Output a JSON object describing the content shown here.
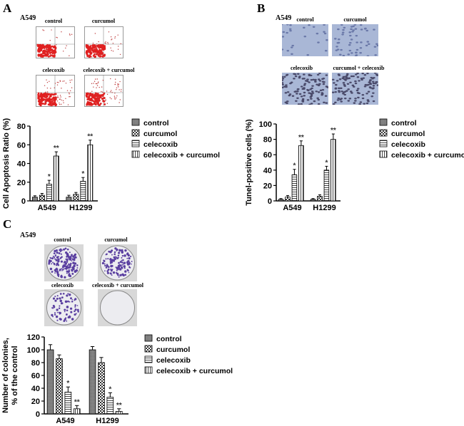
{
  "panels": [
    {
      "label": "A",
      "cell_line": "A549",
      "image_captions": [
        "control",
        "curcumol",
        "celecoxib",
        "celecoxib + curcumol"
      ]
    },
    {
      "label": "B",
      "cell_line": "A549",
      "image_captions": [
        "control",
        "curcumol",
        "celecoxib",
        "curcumol + celecoxib"
      ]
    },
    {
      "label": "C",
      "cell_line": "A549",
      "image_captions": [
        "control",
        "curcumol",
        "celecoxib",
        "celecoxib + curcumol"
      ]
    }
  ],
  "chart_data": [
    {
      "type": "bar",
      "ylabel": "Cell Apoptosis Ratio (%)",
      "ylabel2": "",
      "categories": [
        "A549",
        "H1299"
      ],
      "ylim": [
        0,
        80
      ],
      "yticks": [
        0,
        20,
        40,
        60,
        80
      ],
      "legend": "right",
      "series": [
        {
          "name": "control",
          "values": [
            4,
            4
          ],
          "errors": [
            1.5,
            2
          ],
          "sig": [
            "",
            ""
          ]
        },
        {
          "name": "curcumol",
          "values": [
            6,
            7
          ],
          "errors": [
            2,
            2
          ],
          "sig": [
            "",
            ""
          ]
        },
        {
          "name": "celecoxib",
          "values": [
            18,
            21
          ],
          "errors": [
            4,
            4
          ],
          "sig": [
            "*",
            "*"
          ]
        },
        {
          "name": "celecoxib + curcumol",
          "values": [
            48,
            60
          ],
          "errors": [
            4.5,
            5
          ],
          "sig": [
            "**",
            "**"
          ]
        }
      ]
    },
    {
      "type": "bar",
      "ylabel": "Tunel-positive cells (%)",
      "ylabel2": "",
      "categories": [
        "A549",
        "H1299"
      ],
      "ylim": [
        0,
        100
      ],
      "yticks": [
        0,
        20,
        40,
        60,
        80,
        100
      ],
      "legend": "right",
      "series": [
        {
          "name": "control",
          "values": [
            2,
            2
          ],
          "errors": [
            1,
            1
          ],
          "sig": [
            "",
            ""
          ]
        },
        {
          "name": "curcumol",
          "values": [
            5,
            6
          ],
          "errors": [
            2,
            2
          ],
          "sig": [
            "",
            ""
          ]
        },
        {
          "name": "celecoxib",
          "values": [
            34,
            40
          ],
          "errors": [
            7,
            5
          ],
          "sig": [
            "*",
            "*"
          ]
        },
        {
          "name": "celecoxib + curcumol",
          "values": [
            72,
            80
          ],
          "errors": [
            6,
            7
          ],
          "sig": [
            "**",
            "**"
          ]
        }
      ]
    },
    {
      "type": "bar",
      "ylabel": "Number of colonies,",
      "ylabel2": "% of the control",
      "categories": [
        "A549",
        "H1299"
      ],
      "ylim": [
        0,
        120
      ],
      "yticks": [
        0,
        20,
        40,
        60,
        80,
        100,
        120
      ],
      "legend": "right",
      "series": [
        {
          "name": "control",
          "values": [
            100,
            100
          ],
          "errors": [
            8,
            5
          ],
          "sig": [
            "",
            ""
          ]
        },
        {
          "name": "curcumol",
          "values": [
            86,
            80
          ],
          "errors": [
            6,
            8
          ],
          "sig": [
            "",
            ""
          ]
        },
        {
          "name": "celecoxib",
          "values": [
            34,
            26
          ],
          "errors": [
            8,
            7
          ],
          "sig": [
            "*",
            "*"
          ]
        },
        {
          "name": "celecoxib + curcumol",
          "values": [
            8,
            4
          ],
          "errors": [
            5,
            4
          ],
          "sig": [
            "**",
            "**"
          ]
        }
      ]
    }
  ]
}
